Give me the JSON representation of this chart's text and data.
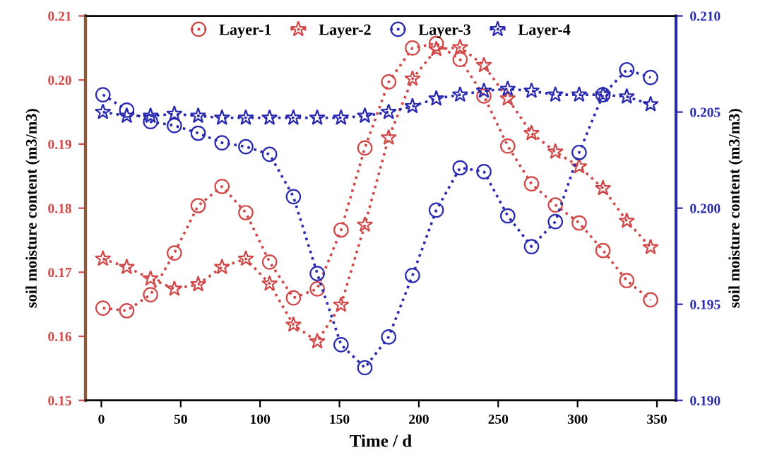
{
  "chart_data": {
    "type": "line",
    "xlabel": "Time / d",
    "ylabel": "soil moisture content (m3/m3)",
    "y2label": "soil moisture content (m3/m3)",
    "x": [
      1,
      16,
      31,
      46,
      61,
      76,
      91,
      106,
      121,
      136,
      151,
      166,
      181,
      196,
      211,
      226,
      241,
      256,
      271,
      286,
      301,
      316,
      331,
      346
    ],
    "xlim": [
      -10,
      362
    ],
    "xticks": [
      0,
      50,
      100,
      150,
      200,
      250,
      300,
      350
    ],
    "ylim": [
      0.15,
      0.21
    ],
    "yticks": [
      {
        "value": 0.15,
        "label": "0.15"
      },
      {
        "value": 0.16,
        "label": "0.16"
      },
      {
        "value": 0.17,
        "label": "0.17"
      },
      {
        "value": 0.18,
        "label": "0.18"
      },
      {
        "value": 0.19,
        "label": "0.19"
      },
      {
        "value": 0.2,
        "label": "0.20"
      },
      {
        "value": 0.21,
        "label": "0.21"
      }
    ],
    "y2lim": [
      0.19,
      0.21
    ],
    "y2ticks": [
      {
        "value": 0.19,
        "label": "0.190"
      },
      {
        "value": 0.195,
        "label": "0.195"
      },
      {
        "value": 0.2,
        "label": "0.200"
      },
      {
        "value": 0.205,
        "label": "0.205"
      },
      {
        "value": 0.21,
        "label": "0.210"
      }
    ],
    "line_style": "dotted",
    "grid": false,
    "legend": "top",
    "series": [
      {
        "name": "Layer-1",
        "color": "#d04848",
        "marker": "circle",
        "values": [
          0.1644,
          0.164,
          0.1665,
          0.173,
          0.1804,
          0.1834,
          0.1793,
          0.1716,
          0.166,
          0.1674,
          0.1766,
          0.1894,
          0.1997,
          0.205,
          0.2057,
          0.2032,
          0.1975,
          0.1897,
          0.1838,
          0.1805,
          0.1777,
          0.1734,
          0.1687,
          0.1657
        ]
      },
      {
        "name": "Layer-2",
        "color": "#d04848",
        "marker": "star",
        "values": [
          0.1721,
          0.1708,
          0.169,
          0.1674,
          0.1681,
          0.1708,
          0.1721,
          0.1682,
          0.1618,
          0.1592,
          0.1649,
          0.1774,
          0.191,
          0.2002,
          0.2048,
          0.2051,
          0.2023,
          0.1971,
          0.1917,
          0.1888,
          0.1865,
          0.1831,
          0.178,
          0.1739
        ]
      },
      {
        "name": "Layer-3",
        "color": "#2a2ab0",
        "marker": "circle",
        "axis": "y2",
        "values": [
          0.2059,
          0.2051,
          0.2045,
          0.2043,
          0.2039,
          0.2034,
          0.2032,
          0.2028,
          0.2006,
          0.1966,
          0.1929,
          0.1917,
          0.1933,
          0.1965,
          0.1999,
          0.2021,
          0.2019,
          0.1996,
          0.198,
          0.1993,
          0.2029,
          0.2059,
          0.2072,
          0.2068
        ]
      },
      {
        "name": "Layer-4",
        "color": "#2a2ab0",
        "marker": "star",
        "axis": "y2",
        "values": [
          0.205,
          0.2048,
          0.2048,
          0.2049,
          0.2048,
          0.2047,
          0.2047,
          0.2047,
          0.2047,
          0.2047,
          0.2047,
          0.2048,
          0.205,
          0.2053,
          0.2057,
          0.2059,
          0.2061,
          0.2062,
          0.2061,
          0.2059,
          0.2059,
          0.2059,
          0.2058,
          0.2054
        ]
      }
    ]
  }
}
